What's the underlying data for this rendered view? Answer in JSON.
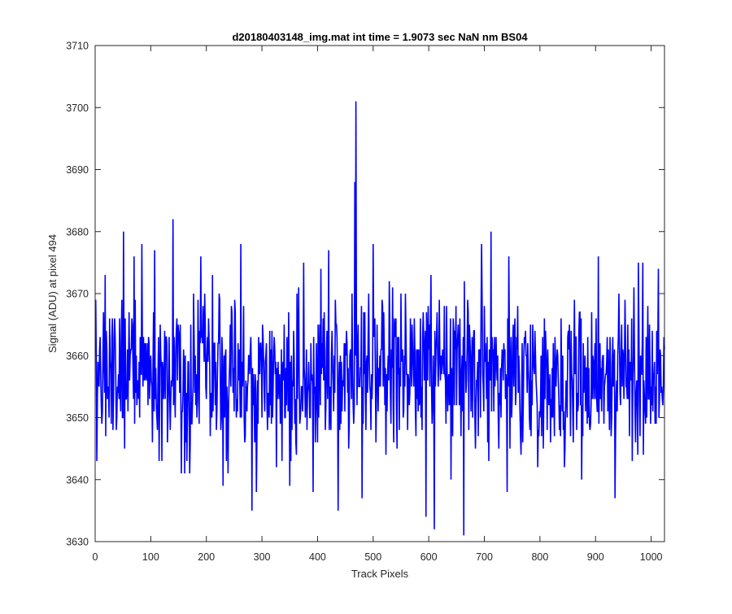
{
  "chart_data": {
    "type": "line",
    "title": "d20180403148_img.mat int time = 1.9073 sec  NaN nm BS04",
    "xlabel": "Track Pixels",
    "ylabel": "Signal (ADU) at pixel 494",
    "xlim": [
      0,
      1024
    ],
    "ylim": [
      3630,
      3710
    ],
    "x_ticks": [
      "0",
      "100",
      "200",
      "300",
      "400",
      "500",
      "600",
      "700",
      "800",
      "900",
      "1000"
    ],
    "x_tick_values": [
      0,
      100,
      200,
      300,
      400,
      500,
      600,
      700,
      800,
      900,
      1000
    ],
    "y_ticks": [
      "3630",
      "3640",
      "3650",
      "3660",
      "3670",
      "3680",
      "3690",
      "3700",
      "3710"
    ],
    "y_tick_values": [
      3630,
      3640,
      3650,
      3660,
      3670,
      3680,
      3690,
      3700,
      3710
    ],
    "grid": false,
    "series": [
      {
        "color": "#0000ff",
        "x_start": 1,
        "x_step": 1,
        "count": 1024,
        "noise_mean": 3657,
        "noise_spread": 6,
        "noise_seed": 494,
        "anchors": [
          [
            3,
            3643
          ],
          [
            12,
            3649
          ],
          [
            15,
            3667
          ],
          [
            18,
            3673
          ],
          [
            44,
            3666
          ],
          [
            51,
            3680
          ],
          [
            53,
            3645
          ],
          [
            70,
            3676
          ],
          [
            84,
            3678
          ],
          [
            107,
            3677
          ],
          [
            130,
            3646
          ],
          [
            140,
            3682
          ],
          [
            155,
            3641
          ],
          [
            170,
            3641
          ],
          [
            190,
            3676
          ],
          [
            210,
            3650
          ],
          [
            230,
            3639
          ],
          [
            245,
            3668
          ],
          [
            262,
            3678
          ],
          [
            282,
            3635
          ],
          [
            290,
            3638
          ],
          [
            336,
            3643
          ],
          [
            350,
            3639
          ],
          [
            375,
            3675
          ],
          [
            392,
            3638
          ],
          [
            420,
            3677
          ],
          [
            437,
            3635
          ],
          [
            467,
            3688
          ],
          [
            469,
            3701
          ],
          [
            480,
            3637
          ],
          [
            500,
            3678
          ],
          [
            529,
            3672
          ],
          [
            550,
            3670
          ],
          [
            570,
            3665
          ],
          [
            595,
            3634
          ],
          [
            610,
            3632
          ],
          [
            640,
            3640
          ],
          [
            663,
            3631
          ],
          [
            664,
            3672
          ],
          [
            695,
            3678
          ],
          [
            700,
            3668
          ],
          [
            712,
            3680
          ],
          [
            741,
            3638
          ],
          [
            744,
            3676
          ],
          [
            760,
            3668
          ],
          [
            806,
            3645
          ],
          [
            842,
            3648
          ],
          [
            875,
            3640
          ],
          [
            905,
            3676
          ],
          [
            935,
            3637
          ],
          [
            977,
            3675
          ],
          [
            985,
            3675
          ],
          [
            1013,
            3674
          ],
          [
            1020,
            3653
          ]
        ]
      }
    ]
  }
}
